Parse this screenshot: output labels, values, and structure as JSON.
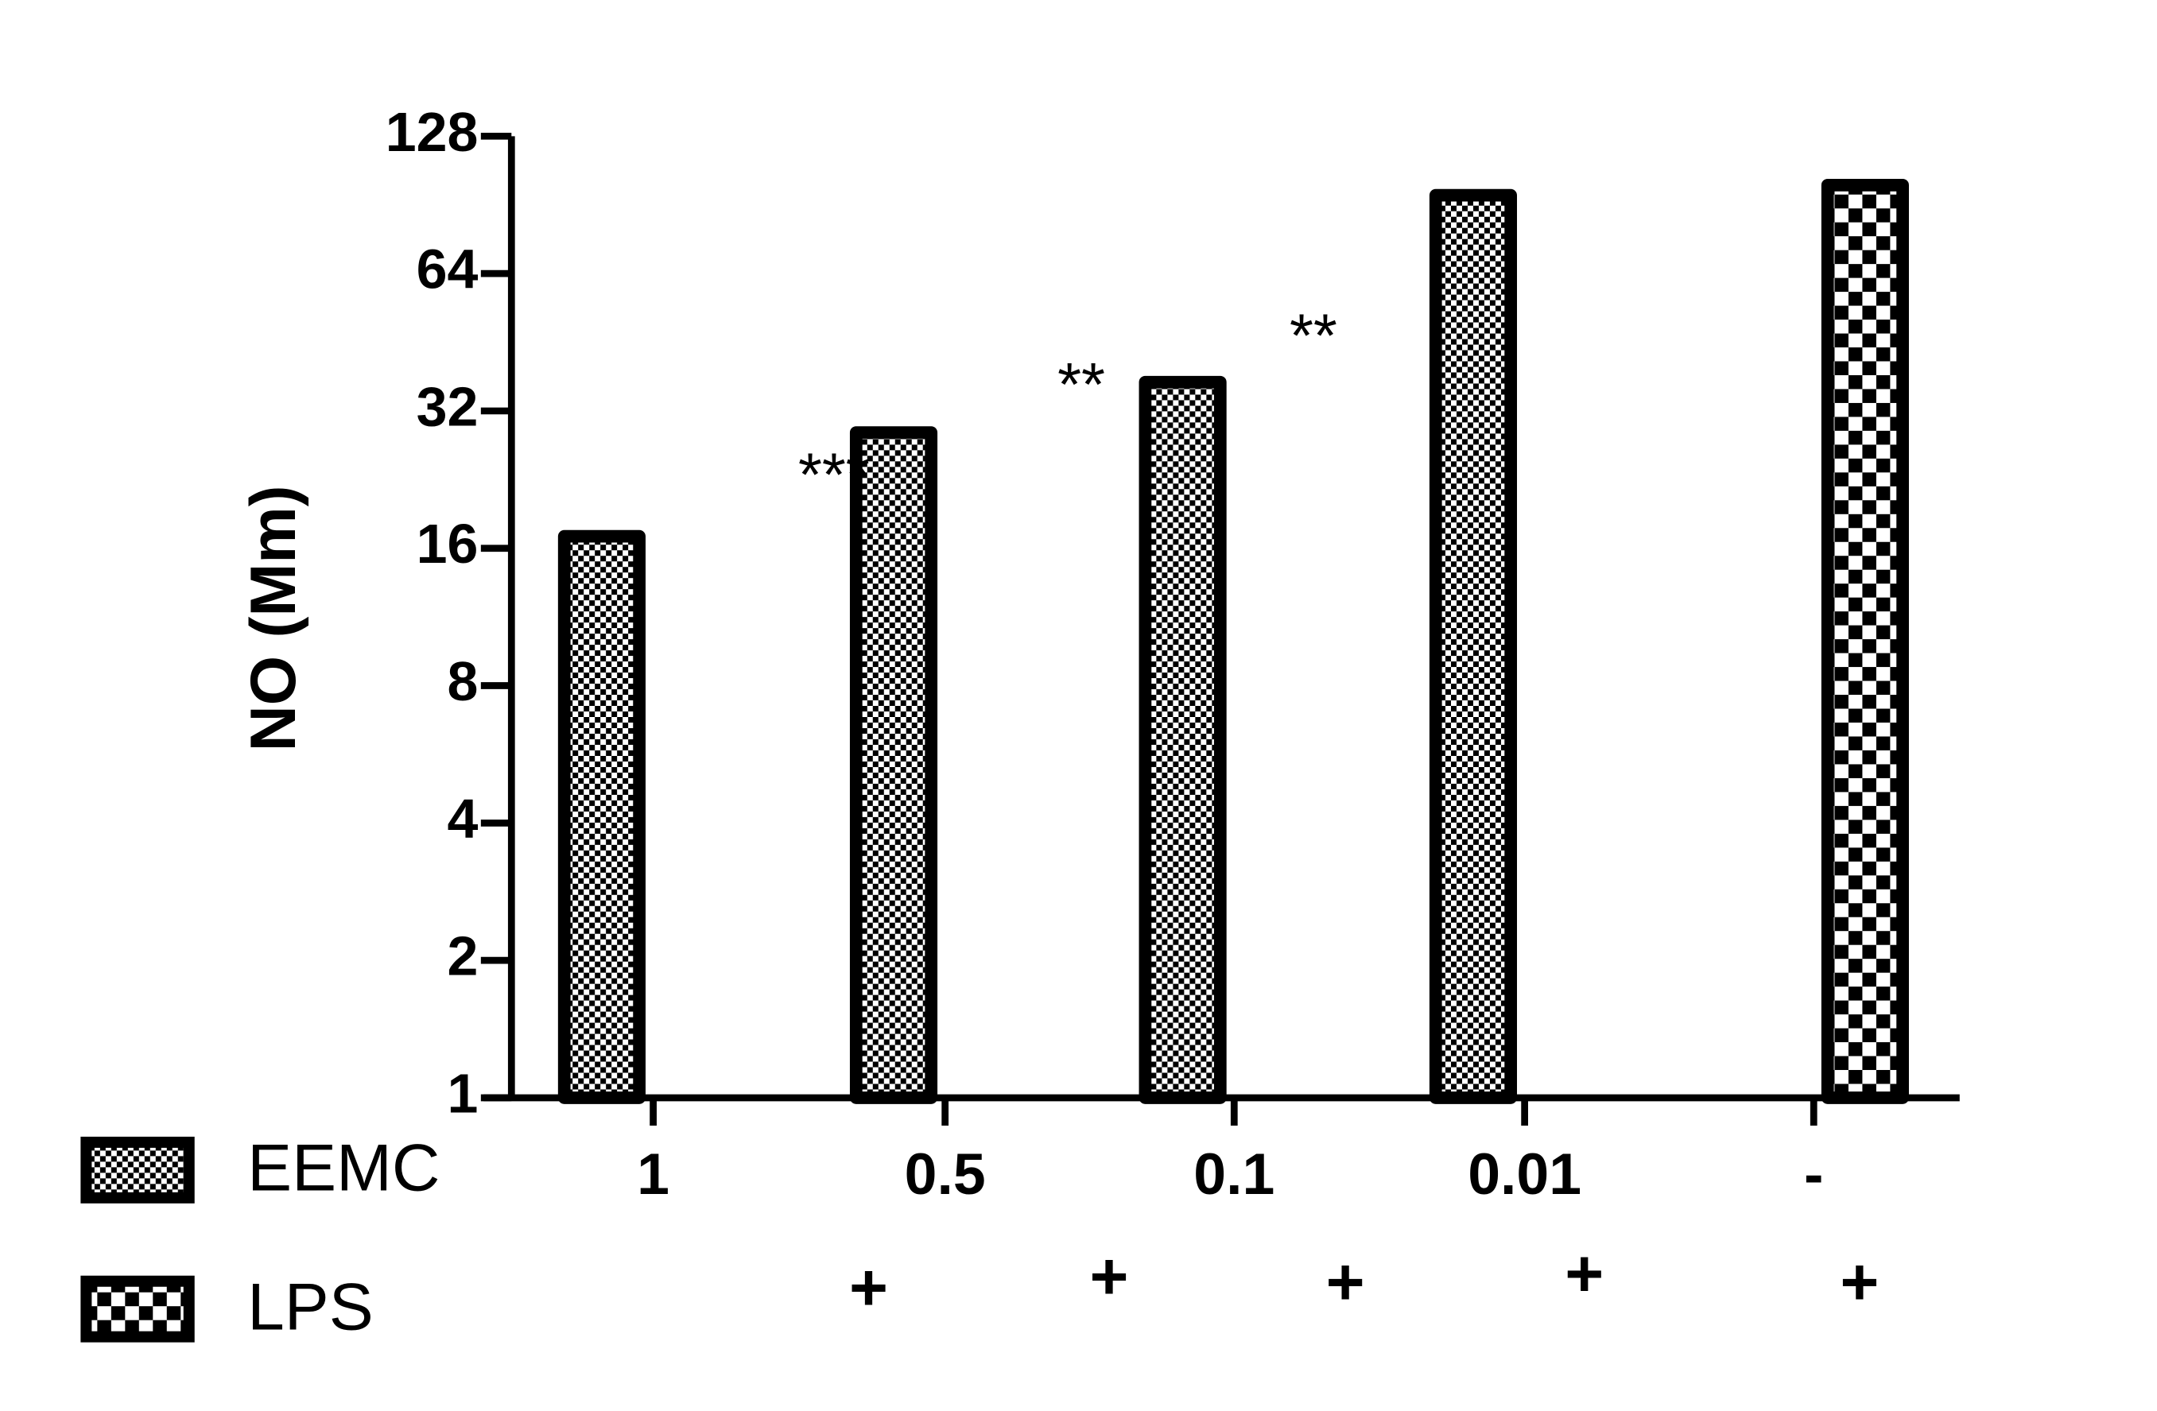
{
  "chart_data": {
    "type": "bar",
    "y_label": "NO (Mm)",
    "log_scale_base": 2,
    "categories": [
      "1",
      "0.5",
      "0.1",
      "0.01",
      "-"
    ],
    "lps_row": [
      "+",
      "+",
      "+",
      "+",
      "+"
    ],
    "series": [
      {
        "name": "EEMC",
        "color": "#000000",
        "values": [
          17,
          28.7,
          37,
          95,
          null
        ]
      },
      {
        "name": "LPS",
        "color": "#000000",
        "values": [
          null,
          null,
          null,
          null,
          100
        ]
      }
    ],
    "annotations": [
      "***",
      "**",
      "**"
    ],
    "ylim": [
      1,
      128
    ],
    "yticks": [
      1,
      2,
      4,
      8,
      16,
      32,
      64,
      128
    ],
    "grid": false,
    "legend": "bottom-left"
  }
}
